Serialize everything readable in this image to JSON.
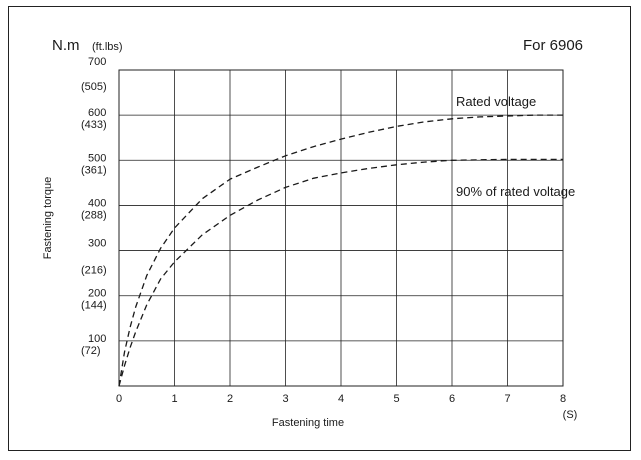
{
  "chart_data": {
    "type": "line",
    "title": "For 6906",
    "ylabel": "Fastening torque",
    "xlabel": "Fastening time",
    "y_unit_primary": "N.m",
    "y_unit_secondary": "(ft.lbs)",
    "x_unit": "(S)",
    "xlim": [
      0,
      8
    ],
    "ylim": [
      0,
      700
    ],
    "x_ticks": [
      "0",
      "1",
      "2",
      "3",
      "4",
      "5",
      "6",
      "7",
      "8"
    ],
    "y_ticks_nm": [
      {
        "value": 100,
        "label": "100"
      },
      {
        "value": 200,
        "label": "200"
      },
      {
        "value": 300,
        "label": "300"
      },
      {
        "value": 400,
        "label": "400"
      },
      {
        "value": 500,
        "label": "500"
      },
      {
        "value": 600,
        "label": "600"
      },
      {
        "value": 700,
        "label": "700"
      }
    ],
    "y_ticks_ftlbs": [
      {
        "value": 100,
        "label": "(72)"
      },
      {
        "value": 200,
        "label": "(144)"
      },
      {
        "value": 300,
        "label": "(216)"
      },
      {
        "value": 400,
        "label": "(288)"
      },
      {
        "value": 500,
        "label": "(361)"
      },
      {
        "value": 600,
        "label": "(433)"
      },
      {
        "value": 700,
        "label": "(505)"
      }
    ],
    "grid": true,
    "series": [
      {
        "name": "Rated voltage",
        "style": "dashed",
        "x": [
          0,
          0.1,
          0.2,
          0.3,
          0.5,
          0.75,
          1,
          1.5,
          2,
          2.5,
          3,
          3.5,
          4,
          4.5,
          5,
          5.5,
          6,
          6.5,
          7,
          7.5,
          8
        ],
        "y": [
          0,
          75,
          130,
          175,
          245,
          305,
          350,
          415,
          458,
          485,
          510,
          530,
          547,
          562,
          575,
          585,
          592,
          596,
          598,
          600,
          600
        ]
      },
      {
        "name": "90% of rated voltage",
        "style": "dashed",
        "x": [
          0,
          0.1,
          0.2,
          0.3,
          0.5,
          0.75,
          1,
          1.5,
          2,
          2.5,
          3,
          3.5,
          4,
          4.5,
          5,
          5.5,
          6,
          6.5,
          7,
          7.5,
          8
        ],
        "y": [
          0,
          45,
          85,
          120,
          180,
          237,
          275,
          335,
          378,
          412,
          440,
          460,
          472,
          482,
          490,
          496,
          500,
          501,
          502,
          502,
          502
        ]
      }
    ]
  }
}
